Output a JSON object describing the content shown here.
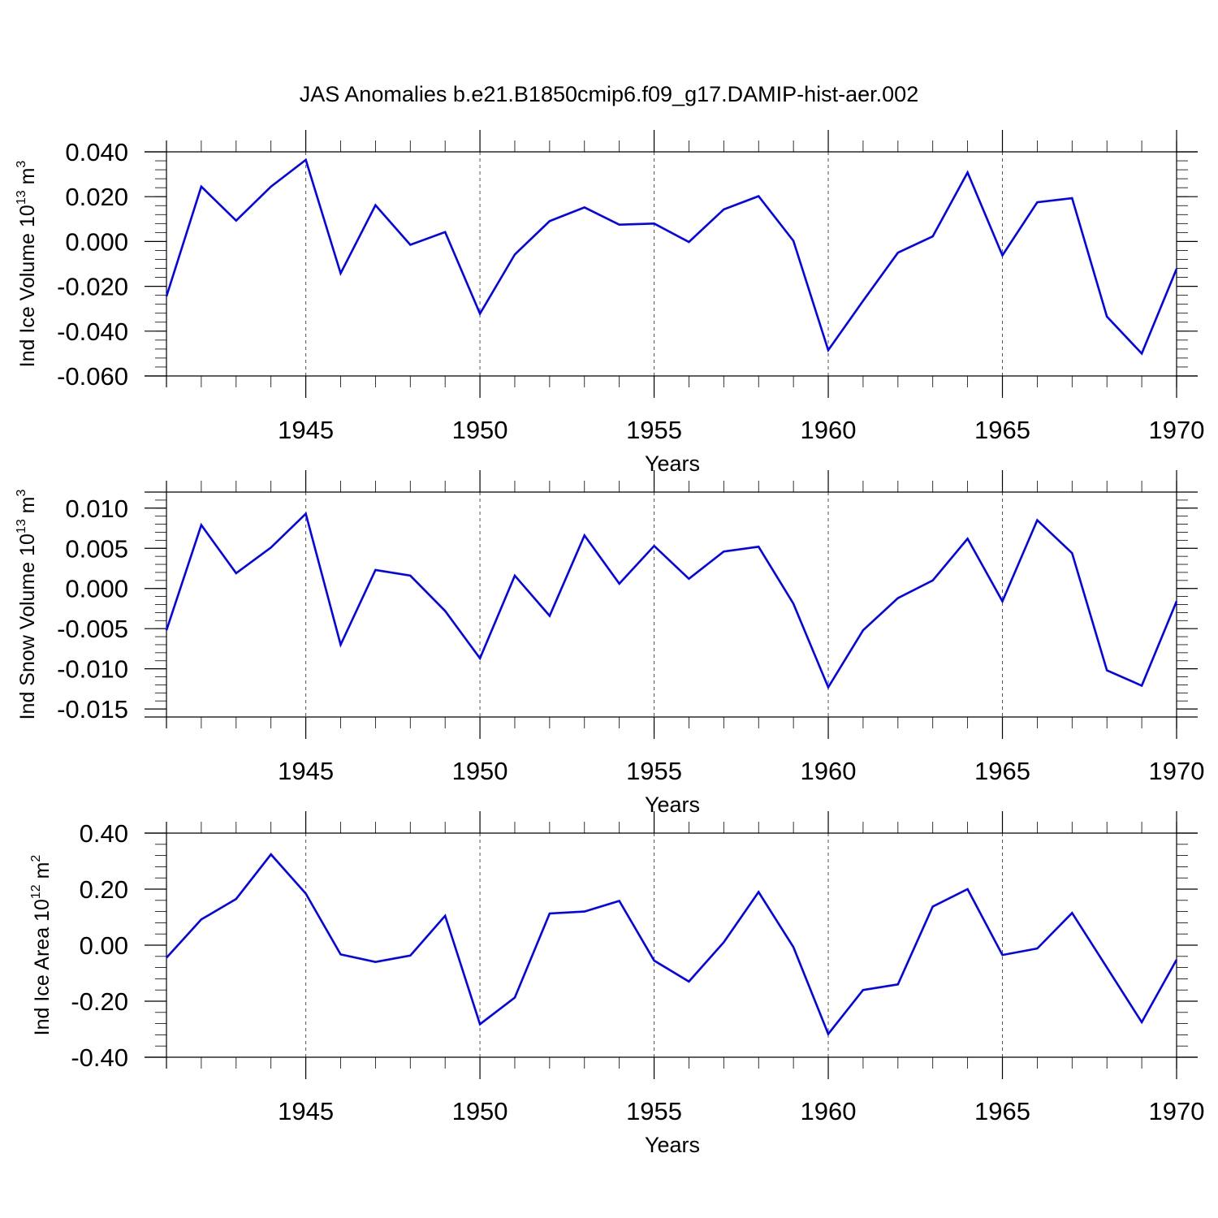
{
  "title": "JAS Anomalies b.e21.B1850cmip6.f09_g17.DAMIP-hist-aer.002",
  "colors": {
    "line": "#0000ff",
    "axis": "#000000",
    "grid": "#555555"
  },
  "chart_data": [
    {
      "type": "line",
      "ylabel_main": "Ind Ice Volume 10",
      "ylabel_exp": "13",
      "ylabel_unit": " m",
      "ylabel_unit_exp": "3",
      "xlabel": "Years",
      "xlim": [
        1941,
        1970
      ],
      "ylim": [
        -0.06,
        0.04
      ],
      "yticks": [
        -0.06,
        -0.04,
        -0.02,
        0.0,
        0.02,
        0.04
      ],
      "ytick_labels": [
        "-0.060",
        "-0.040",
        "-0.020",
        "0.000",
        "0.020",
        "0.040"
      ],
      "yminor_step": 0.004,
      "xticks": [
        1945,
        1950,
        1955,
        1960,
        1965,
        1970
      ],
      "xtick_labels": [
        "1945",
        "1950",
        "1955",
        "1960",
        "1965",
        "1970"
      ],
      "x": [
        1941,
        1942,
        1943,
        1944,
        1945,
        1946,
        1947,
        1948,
        1949,
        1950,
        1951,
        1952,
        1953,
        1954,
        1955,
        1956,
        1957,
        1958,
        1959,
        1960,
        1961,
        1962,
        1963,
        1964,
        1965,
        1966,
        1967,
        1968,
        1969,
        1970
      ],
      "series": [
        {
          "name": "Ind Ice Volume",
          "values": [
            -0.0245,
            0.0245,
            0.0093,
            0.0245,
            0.0364,
            -0.0142,
            0.0162,
            -0.0015,
            0.0042,
            -0.0322,
            -0.0058,
            0.0091,
            0.0152,
            0.0075,
            0.008,
            -0.0002,
            0.0143,
            0.0202,
            0.0003,
            -0.0485,
            -0.0265,
            -0.005,
            0.0023,
            0.0308,
            -0.0062,
            0.0175,
            0.0193,
            -0.0335,
            -0.05,
            -0.0122
          ]
        }
      ]
    },
    {
      "type": "line",
      "ylabel_main": "Ind Snow Volume 10",
      "ylabel_exp": "13",
      "ylabel_unit": " m",
      "ylabel_unit_exp": "3",
      "xlabel": "Years",
      "xlim": [
        1941,
        1970
      ],
      "ylim": [
        -0.016,
        0.012
      ],
      "yticks": [
        -0.015,
        -0.01,
        -0.005,
        0.0,
        0.005,
        0.01
      ],
      "ytick_labels": [
        "-0.015",
        "-0.010",
        "-0.005",
        "0.000",
        "0.005",
        "0.010"
      ],
      "yminor_step": 0.001,
      "xticks": [
        1945,
        1950,
        1955,
        1960,
        1965,
        1970
      ],
      "xtick_labels": [
        "1945",
        "1950",
        "1955",
        "1960",
        "1965",
        "1970"
      ],
      "x": [
        1941,
        1942,
        1943,
        1944,
        1945,
        1946,
        1947,
        1948,
        1949,
        1950,
        1951,
        1952,
        1953,
        1954,
        1955,
        1956,
        1957,
        1958,
        1959,
        1960,
        1961,
        1962,
        1963,
        1964,
        1965,
        1966,
        1967,
        1968,
        1969,
        1970
      ],
      "series": [
        {
          "name": "Ind Snow Volume",
          "values": [
            -0.0052,
            0.0079,
            0.0019,
            0.0051,
            0.0093,
            -0.007,
            0.0023,
            0.0016,
            -0.0028,
            -0.0087,
            0.0016,
            -0.0034,
            0.0066,
            0.0006,
            0.0053,
            0.0012,
            0.0046,
            0.0052,
            -0.0019,
            -0.0123,
            -0.0052,
            -0.0012,
            0.001,
            0.0062,
            -0.0016,
            0.0085,
            0.0044,
            -0.0102,
            -0.0121,
            -0.0016
          ]
        }
      ]
    },
    {
      "type": "line",
      "ylabel_main": "Ind Ice Area 10",
      "ylabel_exp": "12",
      "ylabel_unit": " m",
      "ylabel_unit_exp": "2",
      "xlabel": "Years",
      "xlim": [
        1941,
        1970
      ],
      "ylim": [
        -0.4,
        0.4
      ],
      "yticks": [
        -0.4,
        -0.2,
        0.0,
        0.2,
        0.4
      ],
      "ytick_labels": [
        "-0.40",
        "-0.20",
        "0.00",
        "0.20",
        "0.40"
      ],
      "yminor_step": 0.04,
      "xticks": [
        1945,
        1950,
        1955,
        1960,
        1965,
        1970
      ],
      "xtick_labels": [
        "1945",
        "1950",
        "1955",
        "1960",
        "1965",
        "1970"
      ],
      "x": [
        1941,
        1942,
        1943,
        1944,
        1945,
        1946,
        1947,
        1948,
        1949,
        1950,
        1951,
        1952,
        1953,
        1954,
        1955,
        1956,
        1957,
        1958,
        1959,
        1960,
        1961,
        1962,
        1963,
        1964,
        1965,
        1966,
        1967,
        1968,
        1969,
        1970
      ],
      "series": [
        {
          "name": "Ind Ice Area",
          "values": [
            -0.045,
            0.092,
            0.165,
            0.324,
            0.184,
            -0.033,
            -0.06,
            -0.037,
            0.105,
            -0.282,
            -0.187,
            0.113,
            0.12,
            0.158,
            -0.055,
            -0.13,
            0.01,
            0.19,
            -0.007,
            -0.317,
            -0.16,
            -0.14,
            0.138,
            0.2,
            -0.035,
            -0.012,
            0.115,
            -0.08,
            -0.275,
            -0.052
          ]
        }
      ]
    }
  ]
}
